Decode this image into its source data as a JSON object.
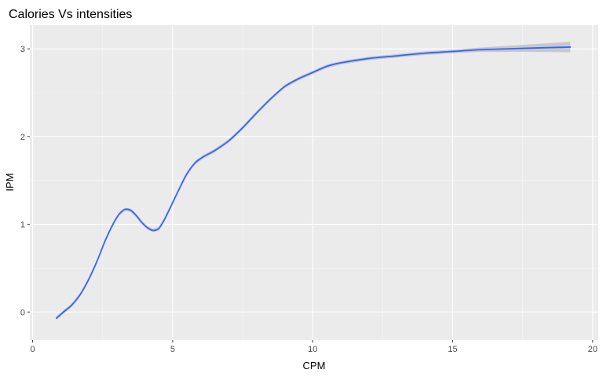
{
  "chart_data": {
    "type": "line",
    "title": "Calories Vs intensities",
    "xlabel": "CPM",
    "ylabel": "IPM",
    "xlim": [
      -0.1,
      20.2
    ],
    "ylim": [
      -0.32,
      3.27
    ],
    "x_ticks": [
      0,
      5,
      10,
      15,
      20
    ],
    "y_ticks": [
      0,
      1,
      2,
      3
    ],
    "x_tick_labels": [
      "0",
      "5",
      "10",
      "15",
      "20"
    ],
    "y_tick_labels": [
      "0",
      "1",
      "2",
      "3"
    ],
    "grid": true,
    "legend": "none",
    "colors": {
      "panel": "#ebebeb",
      "grid_major": "#ffffff",
      "line": "#3366ff",
      "ribbon": "#c4c4c4",
      "tick_text": "#4d4d4d"
    },
    "series": [
      {
        "x": [
          0.85,
          1.1,
          1.4,
          1.7,
          2.0,
          2.3,
          2.6,
          2.9,
          3.1,
          3.3,
          3.5,
          3.7,
          3.9,
          4.1,
          4.3,
          4.5,
          4.7,
          4.9,
          5.2,
          5.5,
          5.8,
          6.1,
          6.5,
          7.0,
          7.5,
          8.0,
          8.5,
          9.0,
          9.5,
          10.0,
          10.5,
          11.0,
          12.0,
          13.0,
          14.0,
          15.0,
          16.0,
          17.0,
          18.0,
          19.2
        ],
        "y": [
          -0.07,
          0.0,
          0.08,
          0.2,
          0.37,
          0.58,
          0.82,
          1.02,
          1.12,
          1.17,
          1.16,
          1.1,
          1.02,
          0.96,
          0.93,
          0.95,
          1.05,
          1.18,
          1.38,
          1.57,
          1.7,
          1.77,
          1.84,
          1.95,
          2.1,
          2.27,
          2.43,
          2.57,
          2.66,
          2.73,
          2.8,
          2.84,
          2.89,
          2.92,
          2.95,
          2.97,
          2.99,
          3.0,
          3.01,
          3.02
        ],
        "band_half_width": [
          0.02,
          0.02,
          0.02,
          0.02,
          0.02,
          0.02,
          0.02,
          0.02,
          0.02,
          0.02,
          0.02,
          0.02,
          0.02,
          0.02,
          0.02,
          0.02,
          0.02,
          0.02,
          0.02,
          0.02,
          0.02,
          0.02,
          0.02,
          0.02,
          0.02,
          0.02,
          0.02,
          0.02,
          0.02,
          0.02,
          0.02,
          0.02,
          0.02,
          0.02,
          0.02,
          0.02,
          0.025,
          0.035,
          0.045,
          0.06
        ]
      }
    ]
  }
}
